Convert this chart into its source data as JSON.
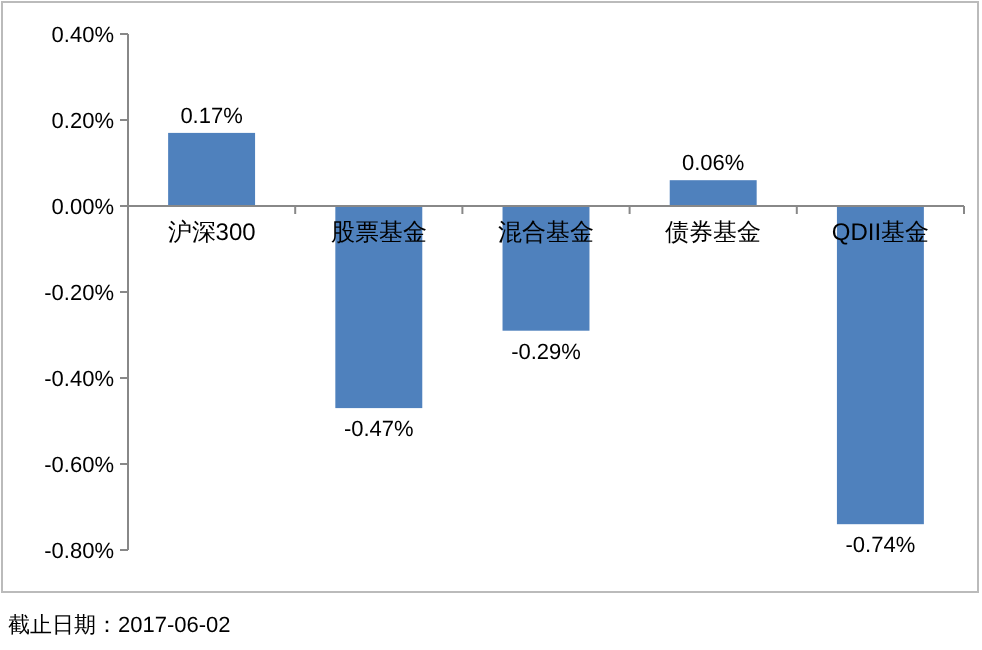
{
  "chart_data": {
    "type": "bar",
    "categories": [
      "沪深300",
      "股票基金",
      "混合基金",
      "债券基金",
      "QDII基金"
    ],
    "values": [
      0.17,
      -0.47,
      -0.29,
      0.06,
      -0.74
    ],
    "value_labels": [
      "0.17%",
      "-0.47%",
      "-0.29%",
      "0.06%",
      "-0.74%"
    ],
    "color": "#4f81bd",
    "ylim": [
      -0.8,
      0.4
    ],
    "yticks": [
      {
        "value": 0.4,
        "label": "0.40%"
      },
      {
        "value": 0.2,
        "label": "0.20%"
      },
      {
        "value": 0,
        "label": "0.00%"
      },
      {
        "value": -0.2,
        "label": "-0.20%"
      },
      {
        "value": -0.4,
        "label": "-0.40%"
      },
      {
        "value": -0.6,
        "label": "-0.60%"
      },
      {
        "value": -0.8,
        "label": "-0.80%"
      }
    ],
    "annotations": [
      "截止日期：2017-06-02"
    ]
  }
}
